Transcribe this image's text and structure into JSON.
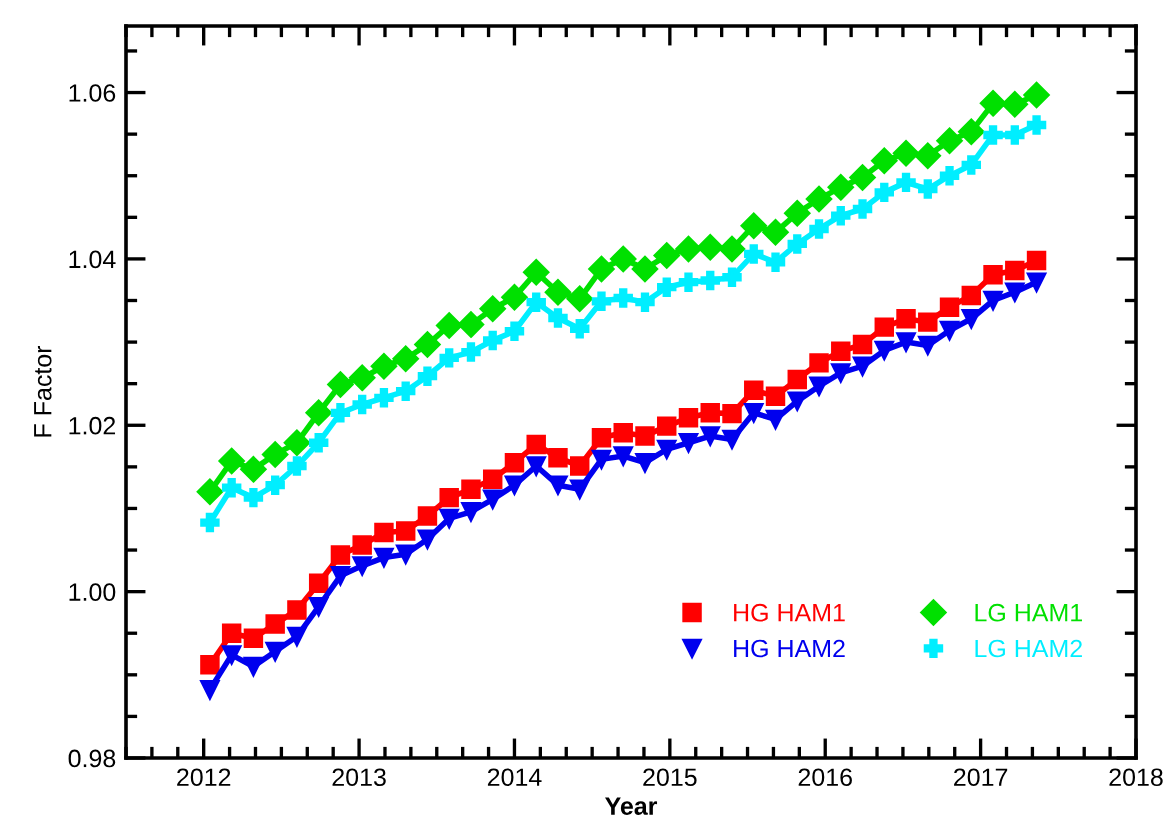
{
  "chart_data": {
    "type": "line",
    "xlabel": "Year",
    "ylabel": "F Factor",
    "x": [
      2012.04,
      2012.18,
      2012.32,
      2012.46,
      2012.6,
      2012.74,
      2012.88,
      2013.02,
      2013.16,
      2013.3,
      2013.44,
      2013.58,
      2013.72,
      2013.86,
      2014.0,
      2014.14,
      2014.28,
      2014.42,
      2014.56,
      2014.7,
      2014.84,
      2014.98,
      2015.12,
      2015.26,
      2015.4,
      2015.54,
      2015.68,
      2015.82,
      2015.96,
      2016.1,
      2016.24,
      2016.38,
      2016.52,
      2016.66,
      2016.8,
      2016.94,
      2017.08,
      2017.22,
      2017.36
    ],
    "series": [
      {
        "name": "HG HAM1",
        "color": "#ff0000",
        "marker": "square",
        "values": [
          0.9912,
          0.995,
          0.9944,
          0.9961,
          0.9978,
          1.001,
          1.0044,
          1.0056,
          1.0071,
          1.0073,
          1.0091,
          1.0113,
          1.0123,
          1.0135,
          1.0155,
          1.0177,
          1.0161,
          1.0151,
          1.0185,
          1.0191,
          1.0187,
          1.0199,
          1.0209,
          1.0215,
          1.0214,
          1.0242,
          1.0235,
          1.0255,
          1.0275,
          1.0289,
          1.0297,
          1.0318,
          1.0328,
          1.0324,
          1.0342,
          1.0356,
          1.0381,
          1.0386,
          1.0398
        ]
      },
      {
        "name": "HG HAM2",
        "color": "#0000ee",
        "marker": "triangle",
        "values": [
          0.9882,
          0.9924,
          0.991,
          0.9928,
          0.9946,
          0.9982,
          1.0019,
          1.0031,
          1.0041,
          1.0045,
          1.0063,
          1.0088,
          1.0096,
          1.0111,
          1.0128,
          1.0151,
          1.0128,
          1.0123,
          1.0159,
          1.0163,
          1.0155,
          1.0171,
          1.0179,
          1.0187,
          1.0183,
          1.0215,
          1.0207,
          1.0229,
          1.0247,
          1.0263,
          1.0271,
          1.029,
          1.03,
          1.0296,
          1.0314,
          1.0328,
          1.035,
          1.036,
          1.0372
        ]
      },
      {
        "name": "LG HAM1",
        "color": "#00e000",
        "marker": "diamond",
        "values": [
          1.012,
          1.0157,
          1.0147,
          1.0165,
          1.0179,
          1.0215,
          1.0249,
          1.0257,
          1.0271,
          1.028,
          1.0297,
          1.032,
          1.0321,
          1.034,
          1.0354,
          1.0384,
          1.036,
          1.0352,
          1.0388,
          1.04,
          1.0388,
          1.0404,
          1.0412,
          1.0414,
          1.0412,
          1.044,
          1.0432,
          1.0455,
          1.0472,
          1.0486,
          1.0498,
          1.0518,
          1.0527,
          1.0524,
          1.0542,
          1.0553,
          1.0587,
          1.0586,
          1.0597
        ]
      },
      {
        "name": "LG HAM2",
        "color": "#00eeff",
        "marker": "cross",
        "values": [
          1.0083,
          1.0125,
          1.0113,
          1.0128,
          1.0151,
          1.0179,
          1.0215,
          1.0225,
          1.0233,
          1.0241,
          1.0259,
          1.0281,
          1.0288,
          1.0302,
          1.0313,
          1.0348,
          1.0329,
          1.0316,
          1.0349,
          1.0353,
          1.0348,
          1.0366,
          1.0372,
          1.0374,
          1.0378,
          1.0406,
          1.0396,
          1.0418,
          1.0436,
          1.0452,
          1.046,
          1.048,
          1.0492,
          1.0484,
          1.05,
          1.0513,
          1.0549,
          1.0549,
          1.0561
        ]
      }
    ],
    "xlim": [
      2011.5,
      2018
    ],
    "xticks": [
      2012,
      2013,
      2014,
      2015,
      2016,
      2017,
      2018
    ],
    "ylim": [
      0.98,
      1.068
    ],
    "yticks": [
      {
        "value": 0.98,
        "label": "0.98"
      },
      {
        "value": 1.0,
        "label": "1.00"
      },
      {
        "value": 1.02,
        "label": "1.02"
      },
      {
        "value": 1.04,
        "label": "1.04"
      },
      {
        "value": 1.06,
        "label": "1.06"
      }
    ],
    "legend": "bottom right",
    "grid": false,
    "line_style": "solid"
  }
}
